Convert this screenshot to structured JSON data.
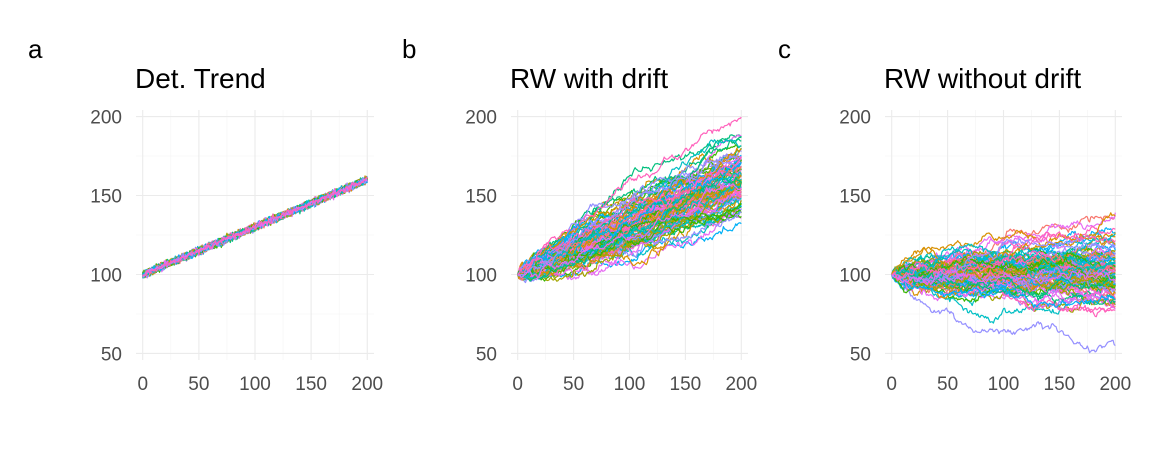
{
  "palette": [
    "#F8766D",
    "#D89000",
    "#A3A500",
    "#39B600",
    "#00BF7D",
    "#00BFC4",
    "#00B0F6",
    "#9590FF",
    "#E76BF3",
    "#FF62BC"
  ],
  "chart_data": [
    {
      "type": "line",
      "panel_label": "a",
      "title": "Det. Trend",
      "xlim": [
        0,
        200
      ],
      "ylim": [
        50,
        200
      ],
      "x_ticks": [
        0,
        50,
        100,
        150,
        200
      ],
      "y_ticks": [
        50,
        100,
        150,
        200
      ],
      "x_tick_labels": [
        "0",
        "50",
        "100",
        "150",
        "200"
      ],
      "y_tick_labels": [
        "50",
        "100",
        "150",
        "200"
      ],
      "grid": true,
      "legend": "none",
      "n_series": 100,
      "n_points": 200,
      "generator": {
        "model": "deterministic_trend",
        "start": 100,
        "drift": 0.3,
        "noise_sd": 1.0
      },
      "series_summary": {
        "y_at_x0": 100,
        "y_at_x200_mean": 160,
        "y_at_x200_range": [
          157,
          163
        ]
      }
    },
    {
      "type": "line",
      "panel_label": "b",
      "title": "RW with drift",
      "xlim": [
        0,
        200
      ],
      "ylim": [
        50,
        200
      ],
      "x_ticks": [
        0,
        50,
        100,
        150,
        200
      ],
      "y_ticks": [
        50,
        100,
        150,
        200
      ],
      "x_tick_labels": [
        "0",
        "50",
        "100",
        "150",
        "200"
      ],
      "y_tick_labels": [
        "50",
        "100",
        "150",
        "200"
      ],
      "grid": true,
      "legend": "none",
      "n_series": 100,
      "n_points": 200,
      "generator": {
        "model": "random_walk",
        "start": 100,
        "drift": 0.3,
        "step_sd": 1.0
      },
      "series_summary": {
        "y_at_x0": 100,
        "y_at_x200_mean": 160,
        "y_at_x200_range": [
          126,
          197
        ]
      }
    },
    {
      "type": "line",
      "panel_label": "c",
      "title": "RW without drift",
      "xlim": [
        0,
        200
      ],
      "ylim": [
        50,
        200
      ],
      "x_ticks": [
        0,
        50,
        100,
        150,
        200
      ],
      "y_ticks": [
        50,
        100,
        150,
        200
      ],
      "x_tick_labels": [
        "0",
        "50",
        "100",
        "150",
        "200"
      ],
      "y_tick_labels": [
        "50",
        "100",
        "150",
        "200"
      ],
      "grid": true,
      "legend": "none",
      "n_series": 100,
      "n_points": 200,
      "generator": {
        "model": "random_walk",
        "start": 100,
        "drift": 0.0,
        "step_sd": 1.0
      },
      "series_summary": {
        "y_at_x0": 100,
        "y_at_x200_mean": 100,
        "y_at_x200_range": [
          63,
          137
        ]
      }
    }
  ]
}
